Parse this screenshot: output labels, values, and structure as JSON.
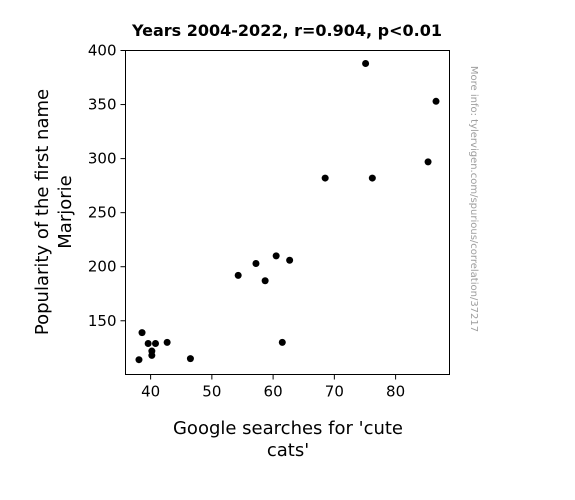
{
  "chart_data": {
    "type": "scatter",
    "title": "Years 2004-2022, r=0.904, p<0.01",
    "xlabel_lines": [
      "Google searches for 'cute",
      "cats'"
    ],
    "ylabel_lines": [
      "Popularity of the first name",
      "Marjorie"
    ],
    "watermark": "More info: tylervigen.com/spurious/correlation/37217",
    "xlim": [
      35.9,
      88.8
    ],
    "ylim": [
      100.3,
      400
    ],
    "xticks": [
      40,
      50,
      60,
      70,
      80
    ],
    "yticks": [
      150,
      200,
      250,
      300,
      350,
      400
    ],
    "grid": false,
    "marker_color": "#000000",
    "points": [
      {
        "x": 38.1,
        "y": 114
      },
      {
        "x": 38.6,
        "y": 139
      },
      {
        "x": 39.6,
        "y": 129
      },
      {
        "x": 40.2,
        "y": 118
      },
      {
        "x": 40.2,
        "y": 122
      },
      {
        "x": 40.8,
        "y": 129
      },
      {
        "x": 42.7,
        "y": 130
      },
      {
        "x": 46.5,
        "y": 115
      },
      {
        "x": 54.3,
        "y": 192
      },
      {
        "x": 57.2,
        "y": 203
      },
      {
        "x": 58.7,
        "y": 187
      },
      {
        "x": 60.5,
        "y": 210
      },
      {
        "x": 61.5,
        "y": 130
      },
      {
        "x": 62.7,
        "y": 206
      },
      {
        "x": 68.5,
        "y": 282
      },
      {
        "x": 75.1,
        "y": 388
      },
      {
        "x": 76.2,
        "y": 282
      },
      {
        "x": 85.3,
        "y": 297
      },
      {
        "x": 86.6,
        "y": 353
      }
    ]
  }
}
